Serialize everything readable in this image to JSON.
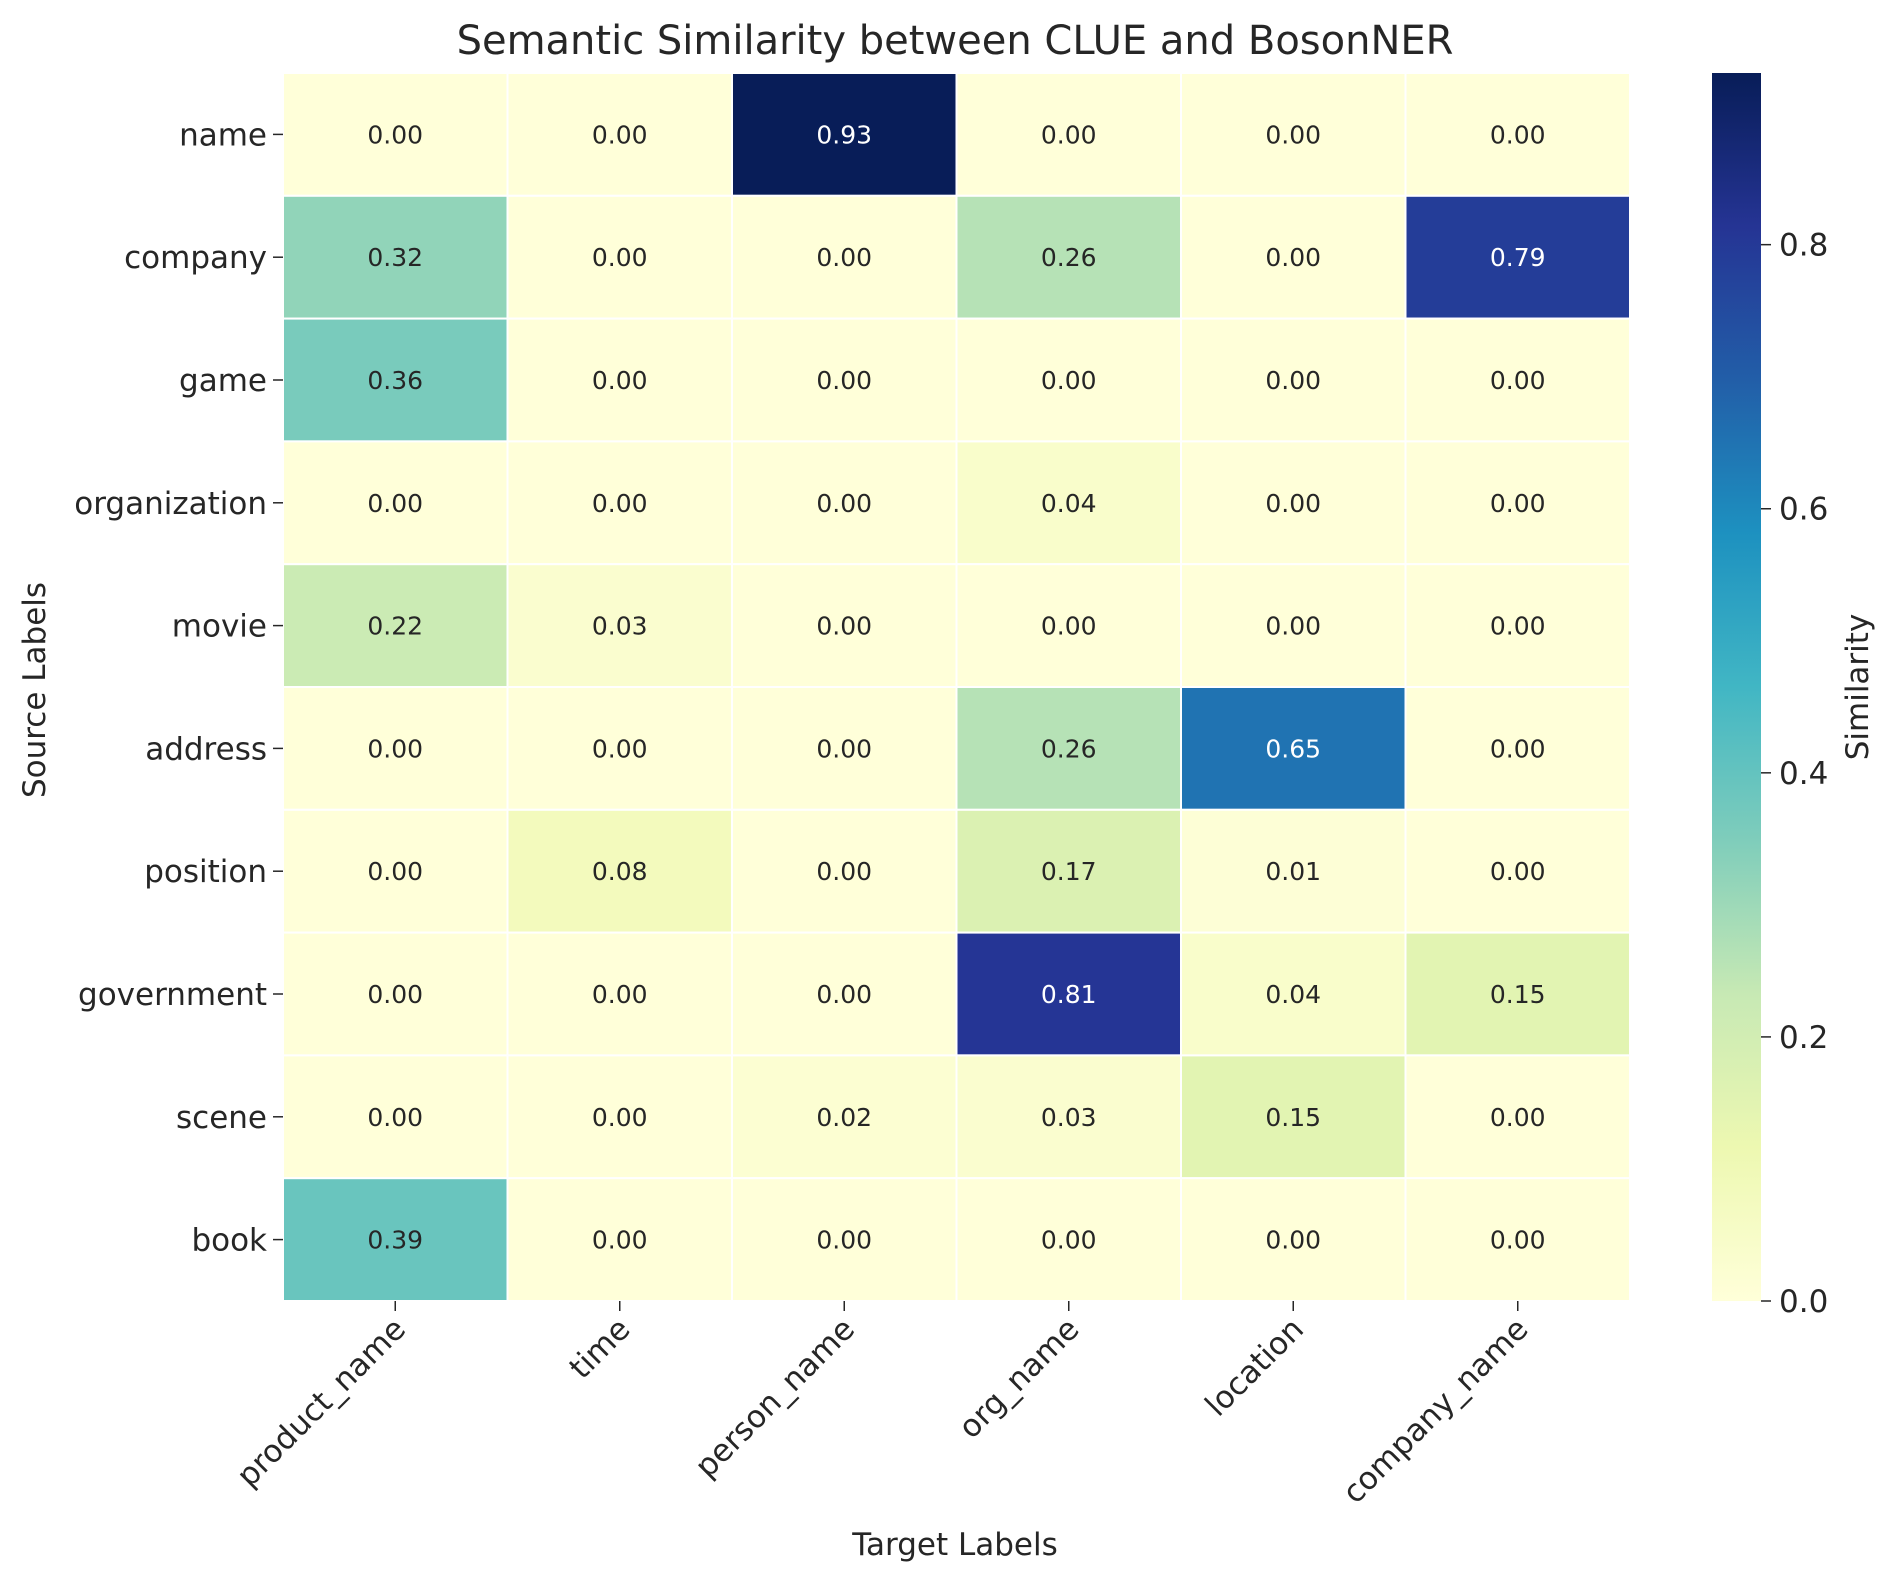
{
  "chart_data": {
    "type": "heatmap",
    "title": "Semantic Similarity between CLUE and BosonNER",
    "xlabel": "Target Labels",
    "ylabel": "Source Labels",
    "x_categories": [
      "product_name",
      "time",
      "person_name",
      "org_name",
      "location",
      "company_name"
    ],
    "y_categories": [
      "name",
      "company",
      "game",
      "organization",
      "movie",
      "address",
      "position",
      "government",
      "scene",
      "book"
    ],
    "values": [
      [
        0.0,
        0.0,
        0.93,
        0.0,
        0.0,
        0.0
      ],
      [
        0.32,
        0.0,
        0.0,
        0.26,
        0.0,
        0.79
      ],
      [
        0.36,
        0.0,
        0.0,
        0.0,
        0.0,
        0.0
      ],
      [
        0.0,
        0.0,
        0.0,
        0.04,
        0.0,
        0.0
      ],
      [
        0.22,
        0.03,
        0.0,
        0.0,
        0.0,
        0.0
      ],
      [
        0.0,
        0.0,
        0.0,
        0.26,
        0.65,
        0.0
      ],
      [
        0.0,
        0.08,
        0.0,
        0.17,
        0.01,
        0.0
      ],
      [
        0.0,
        0.0,
        0.0,
        0.81,
        0.04,
        0.15
      ],
      [
        0.0,
        0.0,
        0.02,
        0.03,
        0.15,
        0.0
      ],
      [
        0.39,
        0.0,
        0.0,
        0.0,
        0.0,
        0.0
      ]
    ],
    "value_format": "2 decimals",
    "colormap": "YlGnBu",
    "color_range": [
      0,
      0.93
    ],
    "colorbar": {
      "label": "Similarity",
      "ticks": [
        0.0,
        0.2,
        0.4,
        0.6,
        0.8
      ],
      "tick_labels": [
        "0.0",
        "0.2",
        "0.4",
        "0.6",
        "0.8"
      ]
    },
    "cell_border_color": "#ffffff",
    "grid": false,
    "legend": "colorbar-right"
  }
}
